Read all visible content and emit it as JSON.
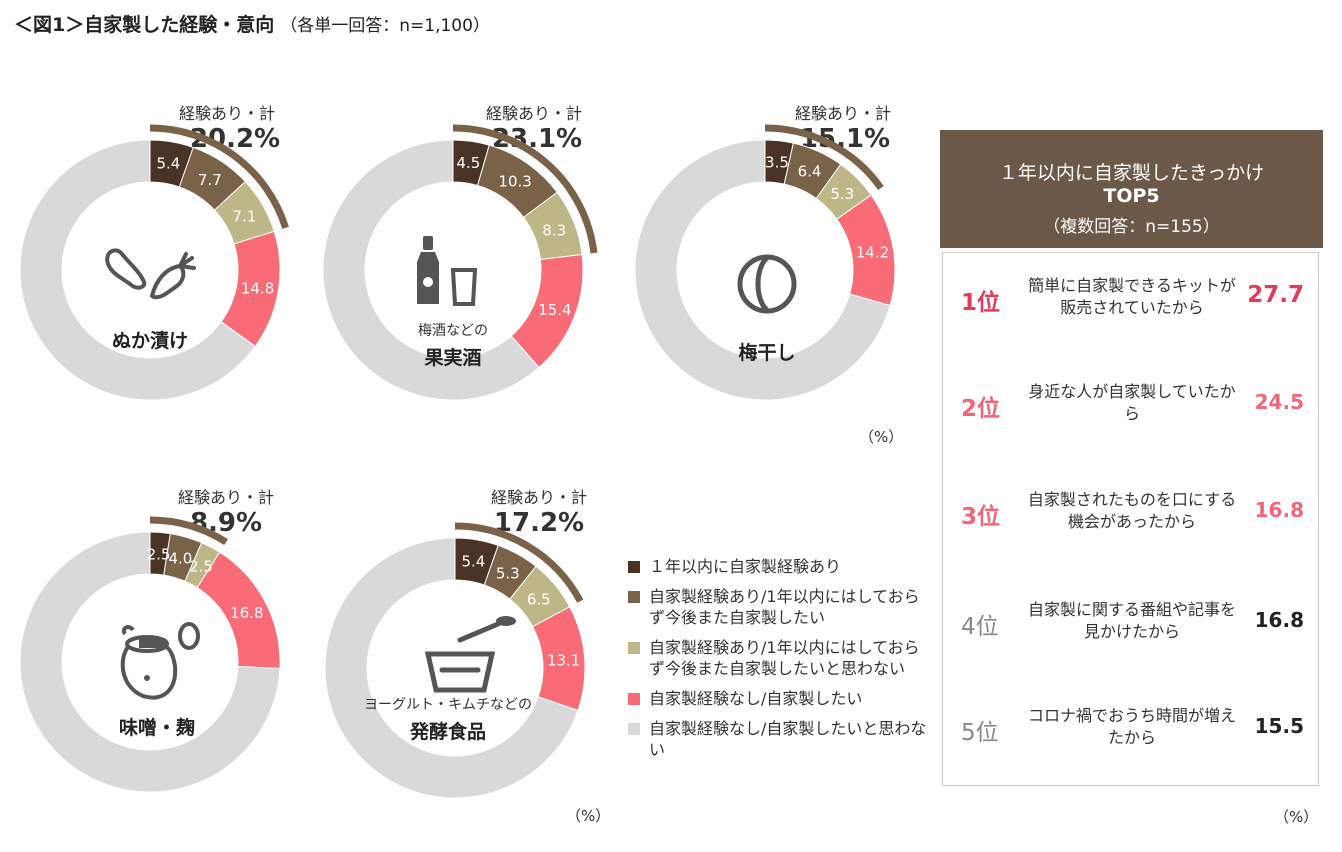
{
  "title": "＜図1＞自家製した経験・意向",
  "subtitle": "（各単一回答：n=1,100）",
  "percent_note": "（%）",
  "total_label": "経験あり・計",
  "colors": {
    "within_year": "#4a3325",
    "experienced_will": "#7a6249",
    "experienced_wont": "#bdb788",
    "no_exp_want": "#f96b77",
    "no_exp_dont_want": "#d9d9d9",
    "bracket": "#7a6249",
    "rank_top": "#e23a5a",
    "rank_mid": "#f0667a",
    "rank_gray": "#888888",
    "header_bg": "#6b5847"
  },
  "chart_data": [
    {
      "type": "pie",
      "name": "ぬか漬け",
      "prefix": "",
      "total": "20.2%",
      "icon": "nukazuke-vegetables-icon",
      "values": [
        5.4,
        7.7,
        7.1,
        14.8,
        65.0
      ],
      "labels": [
        "5.4",
        "7.7",
        "7.1",
        "14.8",
        ""
      ]
    },
    {
      "type": "pie",
      "name": "果実酒",
      "prefix": "梅酒などの",
      "total": "23.1%",
      "icon": "bottle-and-glass-icon",
      "values": [
        4.5,
        10.3,
        8.3,
        15.4,
        61.5
      ],
      "labels": [
        "4.5",
        "10.3",
        "8.3",
        "15.4",
        ""
      ]
    },
    {
      "type": "pie",
      "name": "梅干し",
      "prefix": "",
      "total": "15.1%",
      "icon": "ume-plum-icon",
      "values": [
        3.5,
        6.4,
        5.3,
        14.2,
        70.6
      ],
      "labels": [
        "3.5",
        "6.4",
        "5.3",
        "14.2",
        ""
      ]
    },
    {
      "type": "pie",
      "name": "味噌・麹",
      "prefix": "",
      "total": "8.9%",
      "icon": "miso-pot-icon",
      "values": [
        2.5,
        4.0,
        2.5,
        16.8,
        74.2
      ],
      "labels": [
        "2.5",
        "4.0",
        "2.5",
        "16.8",
        ""
      ]
    },
    {
      "type": "pie",
      "name": "発酵食品",
      "prefix": "ヨーグルト・キムチなどの",
      "total": "17.2%",
      "icon": "bowl-and-spoon-icon",
      "values": [
        5.4,
        5.3,
        6.5,
        13.1,
        69.7
      ],
      "labels": [
        "5.4",
        "5.3",
        "6.5",
        "13.1",
        ""
      ]
    }
  ],
  "legend": [
    "１年以内に自家製経験あり",
    "自家製経験あり/1年以内にはしておらず今後また自家製したい",
    "自家製経験あり/1年以内にはしておらず今後また自家製したいと思わない",
    "自家製経験なし/自家製したい",
    "自家製経験なし/自家製したいと思わない"
  ],
  "top5": {
    "heading1": "１年以内に自家製したきっかけ",
    "heading2": "TOP5",
    "heading3": "（複数回答：n=155）",
    "items": [
      {
        "rank": "1位",
        "text": "簡単に自家製できるキットが販売されていたから",
        "value": "27.7"
      },
      {
        "rank": "2位",
        "text": "身近な人が自家製していたから",
        "value": "24.5"
      },
      {
        "rank": "3位",
        "text": "自家製されたものを口にする機会があったから",
        "value": "16.8"
      },
      {
        "rank": "4位",
        "text": "自家製に関する番組や記事を見かけたから",
        "value": "16.8"
      },
      {
        "rank": "5位",
        "text": "コロナ禍でおうち時間が増えたから",
        "value": "15.5"
      }
    ]
  }
}
